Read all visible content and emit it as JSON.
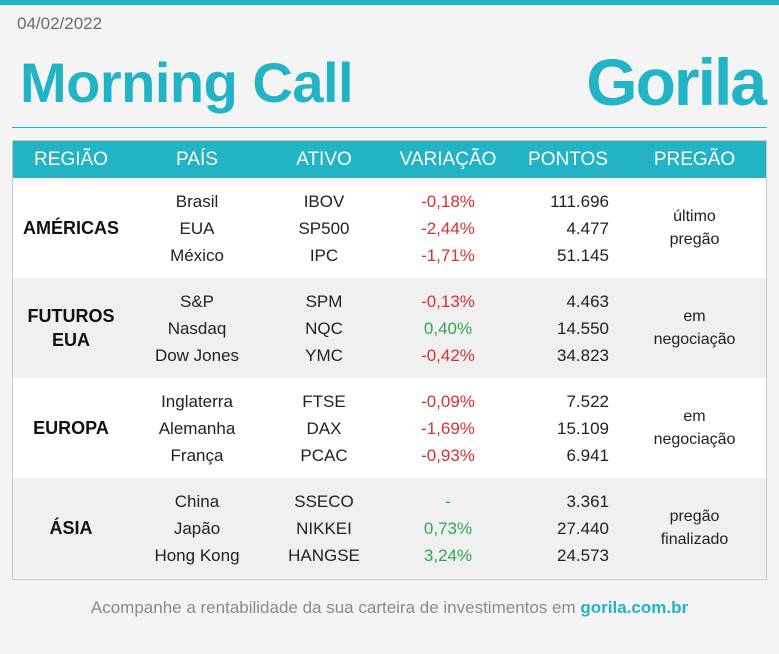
{
  "date": "04/02/2022",
  "title": "Morning Call",
  "brand": "Gorila",
  "colors": {
    "accent": "#22b3c4",
    "negative": "#d8302f",
    "positive": "#2fa84f"
  },
  "table": {
    "headers": [
      "REGIÃO",
      "PAÍS",
      "ATIVO",
      "VARIAÇÃO",
      "PONTOS",
      "PREGÃO"
    ],
    "groups": [
      {
        "region": "AMÉRICAS",
        "status": "último pregão",
        "rows": [
          {
            "country": "Brasil",
            "asset": "IBOV",
            "variation": "-0,18%",
            "points": "111.696",
            "trend": "neg"
          },
          {
            "country": "EUA",
            "asset": "SP500",
            "variation": "-2,44%",
            "points": "4.477",
            "trend": "neg"
          },
          {
            "country": "México",
            "asset": "IPC",
            "variation": "-1,71%",
            "points": "51.145",
            "trend": "neg"
          }
        ]
      },
      {
        "region": "FUTUROS EUA",
        "status": "em negociação",
        "rows": [
          {
            "country": "S&P",
            "asset": "SPM",
            "variation": "-0,13%",
            "points": "4.463",
            "trend": "neg"
          },
          {
            "country": "Nasdaq",
            "asset": "NQC",
            "variation": "0,40%",
            "points": "14.550",
            "trend": "pos"
          },
          {
            "country": "Dow Jones",
            "asset": "YMC",
            "variation": "-0,42%",
            "points": "34.823",
            "trend": "neg"
          }
        ]
      },
      {
        "region": "EUROPA",
        "status": "em negociação",
        "rows": [
          {
            "country": "Inglaterra",
            "asset": "FTSE",
            "variation": "-0,09%",
            "points": "7.522",
            "trend": "neg"
          },
          {
            "country": "Alemanha",
            "asset": "DAX",
            "variation": "-1,69%",
            "points": "15.109",
            "trend": "neg"
          },
          {
            "country": "França",
            "asset": "PCAC",
            "variation": "-0,93%",
            "points": "6.941",
            "trend": "neg"
          }
        ]
      },
      {
        "region": "ÁSIA",
        "status": "pregão finalizado",
        "rows": [
          {
            "country": "China",
            "asset": "SSECO",
            "variation": "-",
            "points": "3.361",
            "trend": "neu"
          },
          {
            "country": "Japão",
            "asset": "NIKKEI",
            "variation": "0,73%",
            "points": "27.440",
            "trend": "pos"
          },
          {
            "country": "Hong Kong",
            "asset": "HANGSE",
            "variation": "3,24%",
            "points": "24.573",
            "trend": "pos"
          }
        ]
      }
    ]
  },
  "footer": {
    "text": "Acompanhe a rentabilidade da sua carteira de investimentos em ",
    "link": "gorila.com.br"
  }
}
